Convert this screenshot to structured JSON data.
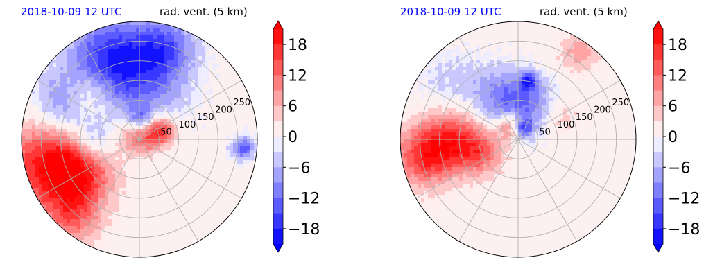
{
  "panels": [
    {
      "title_left": "2018-10-09 12 UTC",
      "title_right": "rad. vent. (5 km)",
      "title_left_color": "#0000ff"
    },
    {
      "title_left": "2018-10-09 12 UTC",
      "title_right": "rad. vent. (5 km)",
      "title_left_color": "#0000ff"
    }
  ],
  "chart_data": [
    {
      "type": "heatmap",
      "projection": "polar",
      "title": "2018-10-09 12 UTC",
      "subtitle": "rad. vent. (5 km)",
      "radial_ticks": [
        50,
        100,
        150,
        200,
        250
      ],
      "rmax": 300,
      "angular_grid_step_deg": 30,
      "grid": true,
      "colorbar": {
        "ticks": [
          18,
          12,
          6,
          0,
          -6,
          -12,
          -18
        ],
        "tick_labels": [
          "18",
          "12",
          "6",
          "0",
          "−6",
          "−12",
          "−18"
        ],
        "range": [
          -21,
          21
        ],
        "extend": "both",
        "colormap": "bwr",
        "levels": 14
      },
      "features": [
        {
          "r": 20,
          "theta_deg": 75,
          "value": 20,
          "spread": 35
        },
        {
          "r": 60,
          "theta_deg": 20,
          "value": 14,
          "spread": 25
        },
        {
          "r": 45,
          "theta_deg": 85,
          "value": -18,
          "spread": 25
        },
        {
          "r": 140,
          "theta_deg": 90,
          "value": -10,
          "spread": 80
        },
        {
          "r": 230,
          "theta_deg": 110,
          "value": -14,
          "spread": 70
        },
        {
          "r": 240,
          "theta_deg": 75,
          "value": -12,
          "spread": 55
        },
        {
          "r": 200,
          "theta_deg": 155,
          "value": -12,
          "spread": 60
        },
        {
          "r": 170,
          "theta_deg": 140,
          "value": 10,
          "spread": 45
        },
        {
          "r": 240,
          "theta_deg": 195,
          "value": 18,
          "spread": 80
        },
        {
          "r": 180,
          "theta_deg": 210,
          "value": 14,
          "spread": 60
        },
        {
          "r": 265,
          "theta_deg": 230,
          "value": 10,
          "spread": 50
        },
        {
          "r": 120,
          "theta_deg": 185,
          "value": -8,
          "spread": 35
        },
        {
          "r": 265,
          "theta_deg": 355,
          "value": -14,
          "spread": 20
        }
      ]
    },
    {
      "type": "heatmap",
      "projection": "polar",
      "title": "2018-10-09 12 UTC",
      "subtitle": "rad. vent. (5 km)",
      "radial_ticks": [
        50,
        100,
        150,
        200,
        250
      ],
      "rmax": 300,
      "angular_grid_step_deg": 30,
      "grid": true,
      "colorbar": {
        "ticks": [
          18,
          12,
          6,
          0,
          -6,
          -12,
          -18
        ],
        "tick_labels": [
          "18",
          "12",
          "6",
          "0",
          "−6",
          "−12",
          "−18"
        ],
        "range": [
          -21,
          21
        ],
        "extend": "both",
        "colormap": "bwr",
        "levels": 14
      },
      "features": [
        {
          "r": 35,
          "theta_deg": 115,
          "value": 16,
          "spread": 25
        },
        {
          "r": 30,
          "theta_deg": 70,
          "value": -18,
          "spread": 18
        },
        {
          "r": 110,
          "theta_deg": 110,
          "value": -10,
          "spread": 55
        },
        {
          "r": 90,
          "theta_deg": 65,
          "value": -8,
          "spread": 50
        },
        {
          "r": 150,
          "theta_deg": 80,
          "value": -14,
          "spread": 15
        },
        {
          "r": 160,
          "theta_deg": 180,
          "value": 14,
          "spread": 55
        },
        {
          "r": 240,
          "theta_deg": 190,
          "value": 16,
          "spread": 55
        },
        {
          "r": 100,
          "theta_deg": 200,
          "value": 10,
          "spread": 40
        },
        {
          "r": 270,
          "theta_deg": 55,
          "value": 8,
          "spread": 35
        },
        {
          "r": 120,
          "theta_deg": 30,
          "value": 6,
          "spread": 35
        },
        {
          "r": 220,
          "theta_deg": 140,
          "value": -4,
          "spread": 60
        }
      ]
    }
  ]
}
